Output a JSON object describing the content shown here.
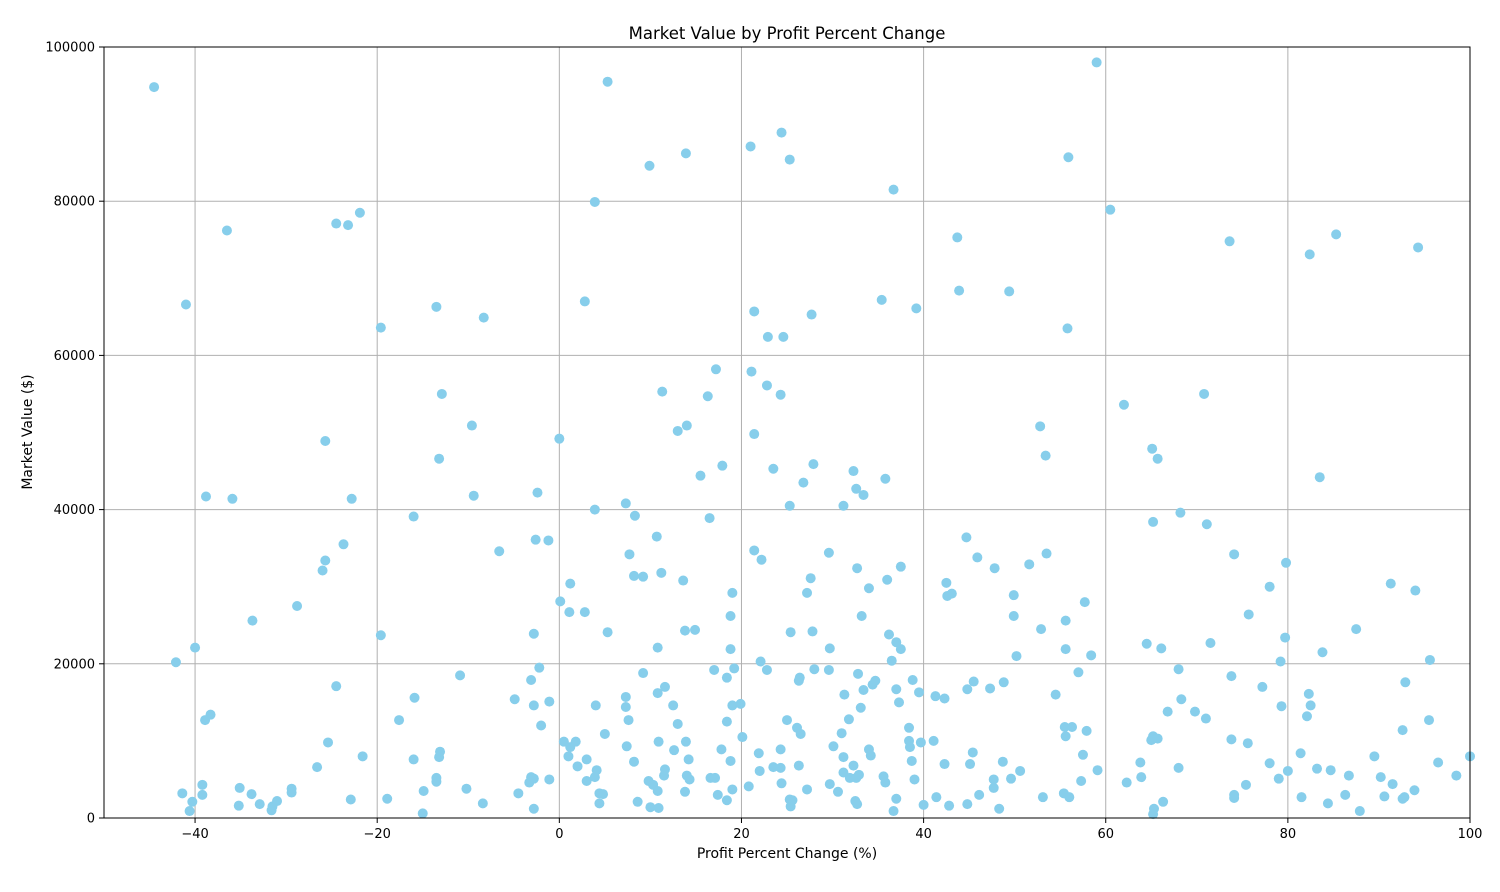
{
  "chart_data": {
    "type": "scatter",
    "title": "Market Value by Profit Percent Change",
    "xlabel": "Profit Percent Change (%)",
    "ylabel": "Market Value ($)",
    "xlim": [
      -50,
      100
    ],
    "ylim": [
      0,
      100000
    ],
    "xticks": [
      -40,
      -20,
      0,
      20,
      40,
      60,
      80,
      100
    ],
    "yticks": [
      0,
      20000,
      40000,
      60000,
      80000,
      100000
    ],
    "xtick_labels": [
      "−40",
      "−20",
      "0",
      "20",
      "40",
      "60",
      "80",
      "100"
    ],
    "ytick_labels": [
      "0",
      "20000",
      "40000",
      "60000",
      "80000",
      "100000"
    ],
    "grid": true,
    "marker_color": "#87ceeb",
    "points": [
      [
        -44.5,
        94800
      ],
      [
        5.3,
        95500
      ],
      [
        59.0,
        98000
      ],
      [
        -41,
        66600
      ],
      [
        -36.5,
        76200
      ],
      [
        -24.5,
        77100
      ],
      [
        -23.2,
        76900
      ],
      [
        -21.9,
        78500
      ],
      [
        3.9,
        79900
      ],
      [
        9.9,
        84600
      ],
      [
        13.9,
        86200
      ],
      [
        21,
        87100
      ],
      [
        24.4,
        88900
      ],
      [
        25.3,
        85400
      ],
      [
        36.7,
        81500
      ],
      [
        55.9,
        85700
      ],
      [
        60.5,
        78900
      ],
      [
        43.7,
        75300
      ],
      [
        73.6,
        74800
      ],
      [
        82.4,
        73100
      ],
      [
        85.3,
        75700
      ],
      [
        94.3,
        74000
      ],
      [
        -19.6,
        63600
      ],
      [
        -13.5,
        66300
      ],
      [
        -8.3,
        64900
      ],
      [
        2.8,
        67000
      ],
      [
        21.4,
        65700
      ],
      [
        22.9,
        62400
      ],
      [
        24.6,
        62400
      ],
      [
        27.7,
        65300
      ],
      [
        35.4,
        67200
      ],
      [
        39.2,
        66100
      ],
      [
        43.9,
        68400
      ],
      [
        49.4,
        68300
      ],
      [
        55.8,
        63500
      ],
      [
        -12.9,
        55000
      ],
      [
        -9.6,
        50900
      ],
      [
        -13.2,
        46600
      ],
      [
        -25.7,
        48900
      ],
      [
        0,
        49200
      ],
      [
        11.3,
        55300
      ],
      [
        13,
        50200
      ],
      [
        14,
        50900
      ],
      [
        16.3,
        54700
      ],
      [
        17.2,
        58200
      ],
      [
        21.1,
        57900
      ],
      [
        21.4,
        49800
      ],
      [
        22.8,
        56100
      ],
      [
        24.3,
        54900
      ],
      [
        52.8,
        50800
      ],
      [
        53.4,
        47000
      ],
      [
        62,
        53600
      ],
      [
        70.8,
        55000
      ],
      [
        65.1,
        47900
      ],
      [
        65.7,
        46600
      ],
      [
        -38.8,
        41700
      ],
      [
        -35.9,
        41400
      ],
      [
        -22.8,
        41400
      ],
      [
        -9.4,
        41800
      ],
      [
        -2.4,
        42200
      ],
      [
        -16,
        39100
      ],
      [
        3.9,
        40000
      ],
      [
        7.3,
        40800
      ],
      [
        8.3,
        39200
      ],
      [
        15.5,
        44400
      ],
      [
        17.9,
        45700
      ],
      [
        23.5,
        45300
      ],
      [
        26.8,
        43500
      ],
      [
        27.9,
        45900
      ],
      [
        25.3,
        40500
      ],
      [
        31.2,
        40500
      ],
      [
        32.3,
        45000
      ],
      [
        32.6,
        42700
      ],
      [
        33.4,
        41900
      ],
      [
        35.8,
        44000
      ],
      [
        65.2,
        38400
      ],
      [
        68.2,
        39600
      ],
      [
        71.1,
        38100
      ],
      [
        83.5,
        44200
      ],
      [
        -23.7,
        35500
      ],
      [
        -26,
        32100
      ],
      [
        -25.7,
        33400
      ],
      [
        -6.6,
        34600
      ],
      [
        -2.6,
        36100
      ],
      [
        -1.2,
        36000
      ],
      [
        1.2,
        30400
      ],
      [
        7.7,
        34200
      ],
      [
        8.2,
        31400
      ],
      [
        9.2,
        31300
      ],
      [
        10.7,
        36500
      ],
      [
        11.2,
        31800
      ],
      [
        13.6,
        30800
      ],
      [
        16.5,
        38900
      ],
      [
        21.4,
        34700
      ],
      [
        22.2,
        33500
      ],
      [
        29.6,
        34400
      ],
      [
        27.6,
        31100
      ],
      [
        27.2,
        29200
      ],
      [
        32.7,
        32400
      ],
      [
        34,
        29800
      ],
      [
        36,
        30900
      ],
      [
        37.5,
        32600
      ],
      [
        42.5,
        30500
      ],
      [
        42.6,
        28800
      ],
      [
        43.1,
        29100
      ],
      [
        44.7,
        36400
      ],
      [
        45.9,
        33800
      ],
      [
        47.8,
        32400
      ],
      [
        51.6,
        32900
      ],
      [
        53.5,
        34300
      ],
      [
        49.9,
        28900
      ],
      [
        57.7,
        28000
      ],
      [
        74.1,
        34200
      ],
      [
        78,
        30000
      ],
      [
        79.8,
        33100
      ],
      [
        91.3,
        30400
      ],
      [
        94,
        29500
      ],
      [
        -33.7,
        25600
      ],
      [
        -28.8,
        27500
      ],
      [
        -40,
        22100
      ],
      [
        -42.1,
        20200
      ],
      [
        -19.6,
        23700
      ],
      [
        -2.8,
        23900
      ],
      [
        0.1,
        28100
      ],
      [
        1.1,
        26700
      ],
      [
        2.8,
        26700
      ],
      [
        5.3,
        24100
      ],
      [
        10.8,
        22100
      ],
      [
        13.8,
        24300
      ],
      [
        14.9,
        24400
      ],
      [
        18.8,
        26200
      ],
      [
        19,
        29200
      ],
      [
        18.8,
        21900
      ],
      [
        19.2,
        19400
      ],
      [
        22.1,
        20300
      ],
      [
        22.8,
        19200
      ],
      [
        25.4,
        24100
      ],
      [
        27.8,
        24200
      ],
      [
        29.7,
        22000
      ],
      [
        33.2,
        26200
      ],
      [
        36.2,
        23800
      ],
      [
        37,
        22800
      ],
      [
        37.5,
        21900
      ],
      [
        36.5,
        20400
      ],
      [
        49.9,
        26200
      ],
      [
        50.2,
        21000
      ],
      [
        52.9,
        24500
      ],
      [
        55.6,
        25600
      ],
      [
        55.6,
        21900
      ],
      [
        58.4,
        21100
      ],
      [
        64.5,
        22600
      ],
      [
        66.1,
        22000
      ],
      [
        71.5,
        22700
      ],
      [
        75.7,
        26400
      ],
      [
        79.7,
        23400
      ],
      [
        79.2,
        20300
      ],
      [
        83.8,
        21500
      ],
      [
        87.5,
        24500
      ],
      [
        95.6,
        20500
      ],
      [
        -24.5,
        17100
      ],
      [
        -38.3,
        13400
      ],
      [
        -38.9,
        12700
      ],
      [
        -15.9,
        15600
      ],
      [
        -17.6,
        12700
      ],
      [
        -10.9,
        18500
      ],
      [
        -4.9,
        15400
      ],
      [
        -3.1,
        17900
      ],
      [
        -2.8,
        14600
      ],
      [
        -1.1,
        15100
      ],
      [
        -2,
        12000
      ],
      [
        -2.2,
        19500
      ],
      [
        4,
        14600
      ],
      [
        7.3,
        15700
      ],
      [
        7.3,
        14400
      ],
      [
        7.6,
        12700
      ],
      [
        10.8,
        16200
      ],
      [
        11.6,
        17000
      ],
      [
        12.5,
        14600
      ],
      [
        13,
        12200
      ],
      [
        9.2,
        18800
      ],
      [
        17,
        19200
      ],
      [
        18.4,
        18200
      ],
      [
        19,
        14600
      ],
      [
        19.9,
        14800
      ],
      [
        18.4,
        12500
      ],
      [
        25,
        12700
      ],
      [
        26.3,
        17800
      ],
      [
        26.4,
        18200
      ],
      [
        28,
        19300
      ],
      [
        29.6,
        19200
      ],
      [
        31.3,
        16000
      ],
      [
        31.8,
        12800
      ],
      [
        32.8,
        18700
      ],
      [
        33.1,
        14300
      ],
      [
        33.4,
        16600
      ],
      [
        34.4,
        17300
      ],
      [
        34.7,
        17800
      ],
      [
        37,
        16700
      ],
      [
        37.3,
        15000
      ],
      [
        38.8,
        17900
      ],
      [
        39.5,
        16300
      ],
      [
        38.4,
        11700
      ],
      [
        41.3,
        15800
      ],
      [
        42.3,
        15500
      ],
      [
        44.8,
        16700
      ],
      [
        45.5,
        17700
      ],
      [
        47.3,
        16800
      ],
      [
        48.8,
        17600
      ],
      [
        54.5,
        16000
      ],
      [
        55.5,
        11800
      ],
      [
        56.3,
        11800
      ],
      [
        57,
        18900
      ],
      [
        57.9,
        11300
      ],
      [
        66.8,
        13800
      ],
      [
        68,
        19300
      ],
      [
        68.3,
        15400
      ],
      [
        69.8,
        13800
      ],
      [
        71,
        12900
      ],
      [
        73.8,
        18400
      ],
      [
        77.2,
        17000
      ],
      [
        79.3,
        14500
      ],
      [
        82.3,
        16100
      ],
      [
        82.5,
        14600
      ],
      [
        82.1,
        13200
      ],
      [
        92.9,
        17600
      ],
      [
        95.5,
        12700
      ],
      [
        -29.4,
        3800
      ],
      [
        -29.4,
        3300
      ],
      [
        -26.6,
        6600
      ],
      [
        -25.4,
        9800
      ],
      [
        -21.6,
        8000
      ],
      [
        -33.8,
        3100
      ],
      [
        -35.2,
        1600
      ],
      [
        -35.1,
        3900
      ],
      [
        -39.2,
        4300
      ],
      [
        -39.2,
        3000
      ],
      [
        -40.3,
        2100
      ],
      [
        -41.4,
        3200
      ],
      [
        -40.6,
        900
      ],
      [
        -32.9,
        1800
      ],
      [
        -31.6,
        1000
      ],
      [
        -31.5,
        1500
      ],
      [
        -31,
        2200
      ],
      [
        -22.9,
        2400
      ],
      [
        -18.9,
        2500
      ],
      [
        -16,
        7600
      ],
      [
        -14.9,
        3500
      ],
      [
        -15,
        600
      ],
      [
        -13.5,
        4700
      ],
      [
        -13.5,
        5200
      ],
      [
        -13.2,
        7900
      ],
      [
        -13.1,
        8600
      ],
      [
        -10.2,
        3800
      ],
      [
        -8.4,
        1900
      ],
      [
        -4.5,
        3200
      ],
      [
        -3.3,
        4600
      ],
      [
        -3.1,
        5300
      ],
      [
        -2.8,
        1200
      ],
      [
        -2.8,
        5100
      ],
      [
        -1.1,
        5000
      ],
      [
        0.5,
        9900
      ],
      [
        1,
        8000
      ],
      [
        1.2,
        9200
      ],
      [
        1.8,
        9900
      ],
      [
        2,
        6700
      ],
      [
        3,
        7600
      ],
      [
        3,
        4800
      ],
      [
        3.9,
        5300
      ],
      [
        4.1,
        6200
      ],
      [
        4.4,
        3200
      ],
      [
        4.4,
        1900
      ],
      [
        4.8,
        3100
      ],
      [
        5,
        10900
      ],
      [
        7.4,
        9300
      ],
      [
        8.2,
        7300
      ],
      [
        8.6,
        2100
      ],
      [
        9.8,
        4800
      ],
      [
        10,
        1400
      ],
      [
        10.3,
        4300
      ],
      [
        10.8,
        3500
      ],
      [
        10.9,
        1300
      ],
      [
        10.9,
        9900
      ],
      [
        11.5,
        5500
      ],
      [
        11.6,
        6300
      ],
      [
        12.6,
        8800
      ],
      [
        13.8,
        3400
      ],
      [
        13.9,
        9900
      ],
      [
        14,
        5500
      ],
      [
        14.2,
        7600
      ],
      [
        14.3,
        5000
      ],
      [
        16.6,
        5200
      ],
      [
        17.1,
        5200
      ],
      [
        17.4,
        3000
      ],
      [
        17.8,
        8900
      ],
      [
        18.4,
        2300
      ],
      [
        18.8,
        7400
      ],
      [
        19,
        3700
      ],
      [
        20.1,
        10500
      ],
      [
        20.8,
        4100
      ],
      [
        21.9,
        8400
      ],
      [
        22,
        6100
      ],
      [
        23.5,
        6600
      ],
      [
        24.3,
        6500
      ],
      [
        24.3,
        8900
      ],
      [
        24.4,
        4500
      ],
      [
        25.3,
        2400
      ],
      [
        25.4,
        1500
      ],
      [
        25.6,
        2300
      ],
      [
        26.1,
        11700
      ],
      [
        26.3,
        6800
      ],
      [
        26.5,
        10900
      ],
      [
        27.2,
        3700
      ],
      [
        29.7,
        4400
      ],
      [
        30.1,
        9300
      ],
      [
        30.6,
        3400
      ],
      [
        31,
        11000
      ],
      [
        31.2,
        7900
      ],
      [
        31.2,
        5900
      ],
      [
        31.9,
        5200
      ],
      [
        32.3,
        6800
      ],
      [
        32.5,
        2200
      ],
      [
        32.6,
        5200
      ],
      [
        32.7,
        1800
      ],
      [
        32.9,
        5600
      ],
      [
        34,
        8900
      ],
      [
        34.2,
        8100
      ],
      [
        35.6,
        5400
      ],
      [
        35.8,
        4600
      ],
      [
        36.7,
        900
      ],
      [
        37,
        2500
      ],
      [
        38.4,
        10000
      ],
      [
        38.5,
        9200
      ],
      [
        38.7,
        7400
      ],
      [
        39,
        5000
      ],
      [
        39.7,
        9800
      ],
      [
        40,
        1700
      ],
      [
        41.1,
        10000
      ],
      [
        41.4,
        2700
      ],
      [
        42.3,
        7000
      ],
      [
        42.8,
        1600
      ],
      [
        44.8,
        1800
      ],
      [
        45.1,
        7000
      ],
      [
        45.4,
        8500
      ],
      [
        46.1,
        3000
      ],
      [
        47.7,
        5000
      ],
      [
        47.7,
        3900
      ],
      [
        48.3,
        1200
      ],
      [
        48.7,
        7300
      ],
      [
        49.6,
        5100
      ],
      [
        50.6,
        6100
      ],
      [
        53.1,
        2700
      ],
      [
        55.4,
        3200
      ],
      [
        55.6,
        10600
      ],
      [
        56,
        2700
      ],
      [
        57.3,
        4800
      ],
      [
        57.5,
        8200
      ],
      [
        59.1,
        6200
      ],
      [
        62.3,
        4600
      ],
      [
        63.9,
        5300
      ],
      [
        63.8,
        7200
      ],
      [
        65,
        10100
      ],
      [
        65.2,
        10600
      ],
      [
        65.7,
        10300
      ],
      [
        65.3,
        1200
      ],
      [
        65.2,
        500
      ],
      [
        66.3,
        2100
      ],
      [
        68,
        6500
      ],
      [
        73.8,
        10200
      ],
      [
        74.1,
        2600
      ],
      [
        74.1,
        3000
      ],
      [
        75.4,
        4300
      ],
      [
        75.6,
        9700
      ],
      [
        78,
        7100
      ],
      [
        79,
        5100
      ],
      [
        80,
        6100
      ],
      [
        81.4,
        8400
      ],
      [
        81.5,
        2700
      ],
      [
        83.2,
        6400
      ],
      [
        84.4,
        1900
      ],
      [
        84.7,
        6200
      ],
      [
        86.3,
        3000
      ],
      [
        86.7,
        5500
      ],
      [
        87.9,
        900
      ],
      [
        89.5,
        8000
      ],
      [
        90.2,
        5300
      ],
      [
        90.6,
        2800
      ],
      [
        91.5,
        4400
      ],
      [
        92.6,
        11400
      ],
      [
        92.6,
        2500
      ],
      [
        92.8,
        2700
      ],
      [
        93.9,
        3600
      ],
      [
        96.5,
        7200
      ],
      [
        98.5,
        5500
      ],
      [
        100,
        8000
      ]
    ]
  }
}
